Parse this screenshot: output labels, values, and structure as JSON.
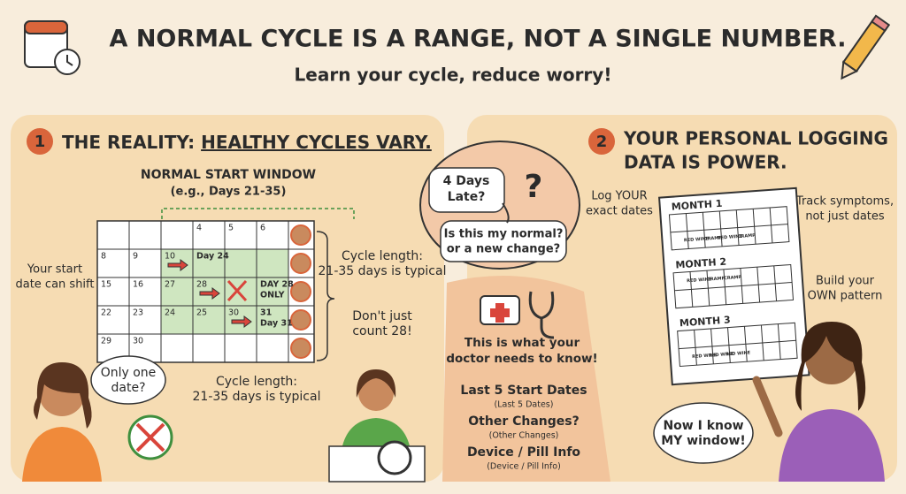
{
  "header": {
    "title": "A NORMAL CYCLE IS A RANGE, NOT A SINGLE NUMBER.",
    "subtitle": "Learn your cycle, reduce worry!"
  },
  "reality": {
    "number": "1",
    "heading_prefix": "THE REALITY: ",
    "heading_emph": "HEALTHY CYCLES VARY.",
    "window_title": "NORMAL START WINDOW",
    "window_example": "(e.g., Days 21-35)",
    "shift_note": [
      "Your start",
      "date can shift"
    ],
    "calendar": [
      [
        null,
        null,
        null,
        "4",
        "5",
        "6"
      ],
      [
        "8",
        "9",
        "10",
        "Day 24",
        null,
        null
      ],
      [
        "15",
        "16",
        "27",
        "28",
        null,
        [
          "DAY 28",
          "ONLY"
        ]
      ],
      [
        "22",
        "23",
        "24",
        "25",
        "30",
        [
          "31",
          "Day 31"
        ]
      ],
      [
        "29",
        "30",
        null,
        null,
        null,
        null
      ]
    ],
    "cycle_note": [
      "Cycle length:",
      "21-35 days is typical"
    ],
    "count_note": [
      "Don't just",
      "count 28!"
    ],
    "question": [
      "Only one",
      "date?"
    ],
    "bottom_note": [
      "Cycle length:",
      "21-35 days is typical"
    ]
  },
  "middle": {
    "late": [
      "4 Days",
      "Late?"
    ],
    "mark": "?",
    "normal": [
      "Is this my normal?",
      "or a new change?"
    ],
    "doctor": [
      "This is what your",
      "doctor needs to know!"
    ],
    "items": [
      {
        "label": "Last 5 Start Dates",
        "sub": "(Last 5 Dates)"
      },
      {
        "label": "Other Changes?",
        "sub": "(Other Changes)"
      },
      {
        "label": "Device / Pill Info",
        "sub": "(Device / Pill Info)"
      }
    ]
  },
  "logging": {
    "number": "2",
    "heading": [
      "YOUR PERSONAL LOGGING",
      "DATA IS POWER."
    ],
    "log_note": [
      "Log YOUR",
      "exact dates"
    ],
    "track_note": [
      "Track symptoms,",
      "not just dates"
    ],
    "build_note": [
      "Build your",
      "OWN pattern"
    ],
    "months": [
      {
        "label": "MONTH 1",
        "tags": [
          "RED WINE",
          "CRAMP",
          "RED WINE",
          "CRAMP"
        ]
      },
      {
        "label": "MONTH 2",
        "tags": [
          "RED WINE",
          "CRAMP",
          "CRAMP"
        ]
      },
      {
        "label": "MONTH 3",
        "tags": [
          "RED WINE",
          "RED WINE",
          "RED WINE"
        ]
      }
    ],
    "speech": [
      "Now I know",
      "MY window!"
    ]
  }
}
